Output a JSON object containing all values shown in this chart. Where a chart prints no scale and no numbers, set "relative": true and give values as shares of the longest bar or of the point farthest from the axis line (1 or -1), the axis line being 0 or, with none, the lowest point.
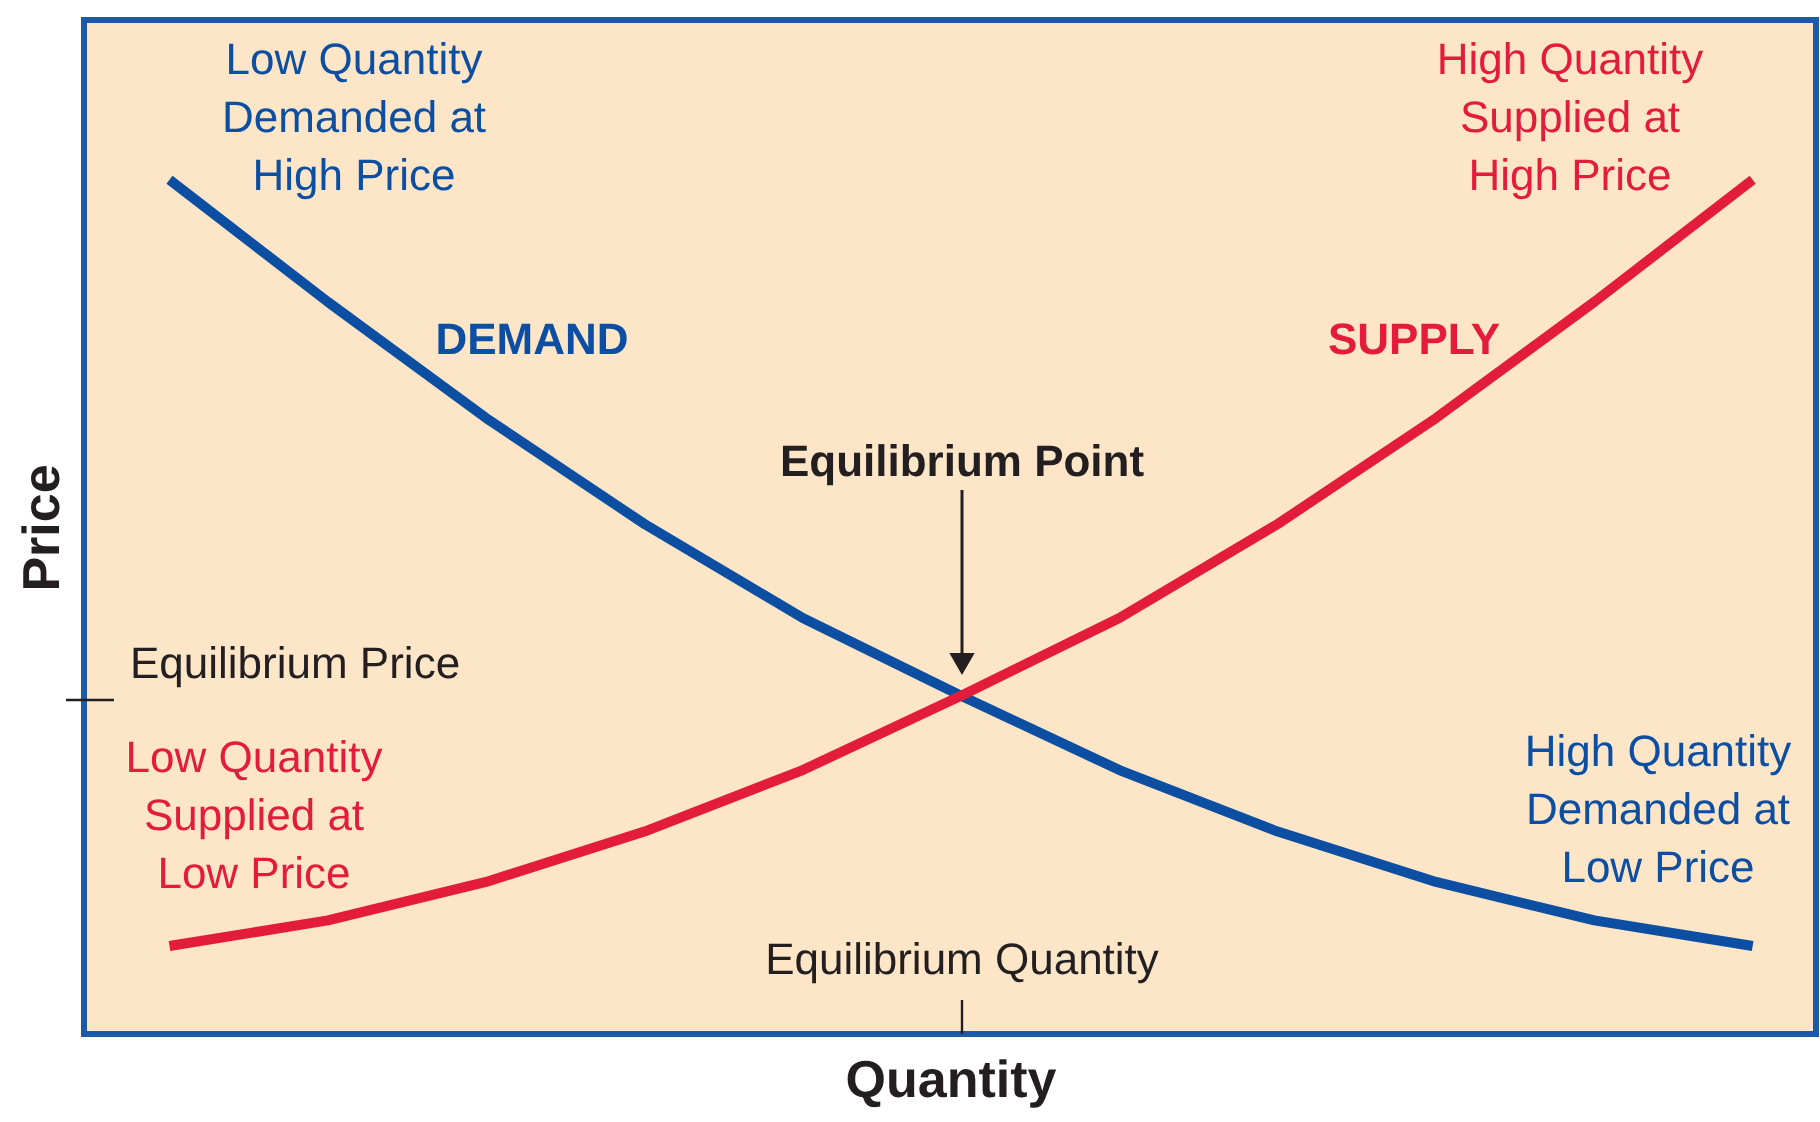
{
  "chart_data": {
    "type": "line",
    "relative": true,
    "xlabel": "Quantity",
    "ylabel": "Price",
    "legend": false,
    "grid": false,
    "tick_labels": false,
    "marker": "none",
    "line_style": "solid",
    "categories": [
      null,
      null,
      null,
      null,
      null,
      null,
      null,
      null,
      null,
      null,
      null
    ],
    "series": [
      {
        "name": "DEMAND",
        "color": "#0b4ea2",
        "values": [
          1,
          0.857,
          0.721,
          0.597,
          0.487,
          0.396,
          0.309,
          0.237,
          0.178,
          0.133,
          0.103
        ]
      },
      {
        "name": "SUPPLY",
        "color": "#e41c3c",
        "values": [
          0.103,
          0.133,
          0.178,
          0.237,
          0.309,
          0.396,
          0.487,
          0.597,
          0.721,
          0.857,
          1
        ]
      }
    ],
    "annotations": [
      "Low Quantity\nDemanded at\nHigh Price",
      "High Quantity\nSupplied at\nHigh Price",
      "Equilibrium Point",
      "Equilibrium Price",
      "Low Quantity\nSupplied at\nLow Price",
      "High Quantity\nDemanded at\nLow Price",
      "Equilibrium Quantity"
    ]
  }
}
